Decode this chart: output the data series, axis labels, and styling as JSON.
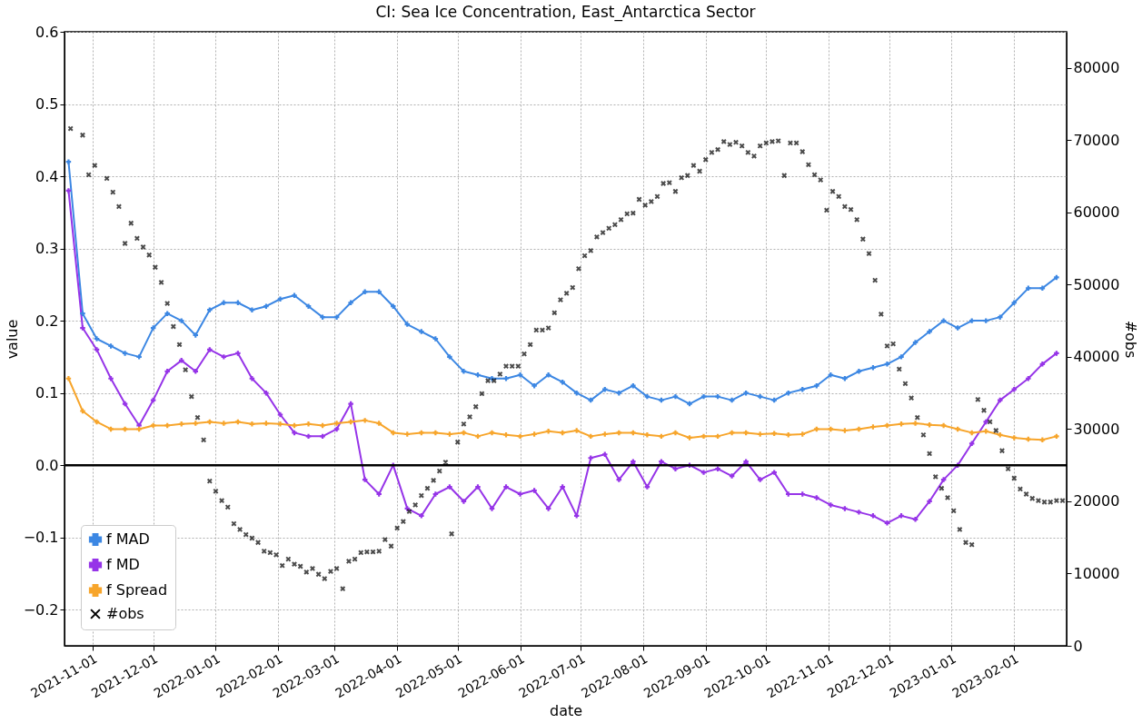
{
  "chart_data": {
    "type": "line",
    "title": "CI: Sea Ice Concentration, East_Antarctica Sector",
    "xlabel": "date",
    "ylabel": "value",
    "y2label": "#obs",
    "x": [
      "2021-10-20",
      "2021-10-27",
      "2021-11-03",
      "2021-11-10",
      "2021-11-17",
      "2021-11-24",
      "2021-12-01",
      "2021-12-08",
      "2021-12-15",
      "2021-12-22",
      "2021-12-29",
      "2022-01-05",
      "2022-01-12",
      "2022-01-19",
      "2022-01-26",
      "2022-02-02",
      "2022-02-09",
      "2022-02-16",
      "2022-02-23",
      "2022-03-02",
      "2022-03-09",
      "2022-03-16",
      "2022-03-23",
      "2022-03-30",
      "2022-04-06",
      "2022-04-13",
      "2022-04-20",
      "2022-04-27",
      "2022-05-04",
      "2022-05-11",
      "2022-05-18",
      "2022-05-25",
      "2022-06-01",
      "2022-06-08",
      "2022-06-15",
      "2022-06-22",
      "2022-06-29",
      "2022-07-06",
      "2022-07-13",
      "2022-07-20",
      "2022-07-27",
      "2022-08-03",
      "2022-08-10",
      "2022-08-17",
      "2022-08-24",
      "2022-08-31",
      "2022-09-07",
      "2022-09-14",
      "2022-09-21",
      "2022-09-28",
      "2022-10-05",
      "2022-10-12",
      "2022-10-19",
      "2022-10-26",
      "2022-11-02",
      "2022-11-09",
      "2022-11-16",
      "2022-11-23",
      "2022-11-30",
      "2022-12-07",
      "2022-12-14",
      "2022-12-21",
      "2022-12-28",
      "2023-01-04",
      "2023-01-11",
      "2023-01-18",
      "2023-01-25",
      "2023-02-01",
      "2023-02-08",
      "2023-02-15",
      "2023-02-22"
    ],
    "series": [
      {
        "name": "f MAD",
        "color": "#3c87e3",
        "values": [
          0.42,
          0.21,
          0.175,
          0.165,
          0.155,
          0.15,
          0.19,
          0.21,
          0.2,
          0.18,
          0.215,
          0.225,
          0.225,
          0.215,
          0.22,
          0.23,
          0.235,
          0.22,
          0.205,
          0.205,
          0.225,
          0.24,
          0.24,
          0.22,
          0.195,
          0.185,
          0.175,
          0.15,
          0.13,
          0.125,
          0.12,
          0.12,
          0.125,
          0.11,
          0.125,
          0.115,
          0.1,
          0.09,
          0.105,
          0.1,
          0.11,
          0.095,
          0.09,
          0.095,
          0.085,
          0.095,
          0.095,
          0.09,
          0.1,
          0.095,
          0.09,
          0.1,
          0.105,
          0.11,
          0.125,
          0.12,
          0.13,
          0.135,
          0.14,
          0.15,
          0.17,
          0.185,
          0.2,
          0.19,
          0.2,
          0.2,
          0.205,
          0.225,
          0.245,
          0.245,
          0.26
        ]
      },
      {
        "name": "f MD",
        "color": "#9634e8",
        "values": [
          0.38,
          0.19,
          0.16,
          0.12,
          0.085,
          0.055,
          0.09,
          0.13,
          0.145,
          0.13,
          0.16,
          0.15,
          0.155,
          0.12,
          0.1,
          0.07,
          0.045,
          0.04,
          0.04,
          0.05,
          0.085,
          -0.02,
          -0.04,
          0.0,
          -0.06,
          -0.07,
          -0.04,
          -0.03,
          -0.05,
          -0.03,
          -0.06,
          -0.03,
          -0.04,
          -0.035,
          -0.06,
          -0.03,
          -0.07,
          0.01,
          0.015,
          -0.02,
          0.005,
          -0.03,
          0.005,
          -0.005,
          0.0,
          -0.01,
          -0.005,
          -0.015,
          0.005,
          -0.02,
          -0.01,
          -0.04,
          -0.04,
          -0.045,
          -0.055,
          -0.06,
          -0.065,
          -0.07,
          -0.08,
          -0.07,
          -0.075,
          -0.05,
          -0.02,
          0.0,
          0.03,
          0.06,
          0.09,
          0.105,
          0.12,
          0.14,
          0.155
        ]
      },
      {
        "name": "f Spread",
        "color": "#f7a52b",
        "values": [
          0.12,
          0.075,
          0.06,
          0.05,
          0.05,
          0.05,
          0.055,
          0.055,
          0.057,
          0.058,
          0.06,
          0.058,
          0.06,
          0.057,
          0.058,
          0.057,
          0.055,
          0.057,
          0.055,
          0.058,
          0.06,
          0.062,
          0.058,
          0.045,
          0.043,
          0.045,
          0.045,
          0.043,
          0.045,
          0.04,
          0.045,
          0.042,
          0.04,
          0.043,
          0.047,
          0.045,
          0.048,
          0.04,
          0.043,
          0.045,
          0.045,
          0.042,
          0.04,
          0.045,
          0.038,
          0.04,
          0.04,
          0.045,
          0.045,
          0.043,
          0.044,
          0.042,
          0.043,
          0.05,
          0.05,
          0.048,
          0.05,
          0.053,
          0.055,
          0.057,
          0.058,
          0.056,
          0.055,
          0.05,
          0.045,
          0.047,
          0.042,
          0.038,
          0.036,
          0.035,
          0.04
        ]
      },
      {
        "name": "#obs",
        "type": "scatter",
        "axis": "y2",
        "color": "#000000",
        "x": [
          "2021-10-21",
          "2021-10-27",
          "2021-10-30",
          "2021-11-02",
          "2021-11-08",
          "2021-11-11",
          "2021-11-14",
          "2021-11-17",
          "2021-11-20",
          "2021-11-23",
          "2021-11-26",
          "2021-11-29",
          "2021-12-02",
          "2021-12-05",
          "2021-12-08",
          "2021-12-11",
          "2021-12-14",
          "2021-12-17",
          "2021-12-20",
          "2021-12-23",
          "2021-12-26",
          "2021-12-29",
          "2022-01-01",
          "2022-01-04",
          "2022-01-07",
          "2022-01-10",
          "2022-01-13",
          "2022-01-16",
          "2022-01-19",
          "2022-01-22",
          "2022-01-25",
          "2022-01-28",
          "2022-01-31",
          "2022-02-03",
          "2022-02-06",
          "2022-02-09",
          "2022-02-12",
          "2022-02-15",
          "2022-02-18",
          "2022-02-21",
          "2022-02-24",
          "2022-02-27",
          "2022-03-02",
          "2022-03-05",
          "2022-03-08",
          "2022-03-11",
          "2022-03-14",
          "2022-03-17",
          "2022-03-20",
          "2022-03-23",
          "2022-03-26",
          "2022-03-29",
          "2022-04-01",
          "2022-04-04",
          "2022-04-07",
          "2022-04-10",
          "2022-04-13",
          "2022-04-16",
          "2022-04-19",
          "2022-04-22",
          "2022-04-25",
          "2022-04-28",
          "2022-05-01",
          "2022-05-04",
          "2022-05-07",
          "2022-05-10",
          "2022-05-13",
          "2022-05-16",
          "2022-05-19",
          "2022-05-22",
          "2022-05-25",
          "2022-05-28",
          "2022-05-31",
          "2022-06-03",
          "2022-06-06",
          "2022-06-09",
          "2022-06-12",
          "2022-06-15",
          "2022-06-18",
          "2022-06-21",
          "2022-06-24",
          "2022-06-27",
          "2022-06-30",
          "2022-07-03",
          "2022-07-06",
          "2022-07-09",
          "2022-07-12",
          "2022-07-15",
          "2022-07-18",
          "2022-07-21",
          "2022-07-24",
          "2022-07-27",
          "2022-07-30",
          "2022-08-02",
          "2022-08-05",
          "2022-08-08",
          "2022-08-11",
          "2022-08-14",
          "2022-08-17",
          "2022-08-20",
          "2022-08-23",
          "2022-08-26",
          "2022-08-29",
          "2022-09-01",
          "2022-09-04",
          "2022-09-07",
          "2022-09-10",
          "2022-09-13",
          "2022-09-16",
          "2022-09-19",
          "2022-09-22",
          "2022-09-25",
          "2022-09-28",
          "2022-10-01",
          "2022-10-04",
          "2022-10-07",
          "2022-10-10",
          "2022-10-13",
          "2022-10-16",
          "2022-10-19",
          "2022-10-22",
          "2022-10-25",
          "2022-10-28",
          "2022-10-31",
          "2022-11-03",
          "2022-11-06",
          "2022-11-09",
          "2022-11-12",
          "2022-11-15",
          "2022-11-18",
          "2022-11-21",
          "2022-11-24",
          "2022-11-27",
          "2022-11-30",
          "2022-12-03",
          "2022-12-06",
          "2022-12-09",
          "2022-12-12",
          "2022-12-15",
          "2022-12-18",
          "2022-12-21",
          "2022-12-24",
          "2022-12-27",
          "2022-12-30",
          "2023-01-02",
          "2023-01-05",
          "2023-01-08",
          "2023-01-11",
          "2023-01-14",
          "2023-01-17",
          "2023-01-20",
          "2023-01-23",
          "2023-01-26",
          "2023-01-29",
          "2023-02-01",
          "2023-02-04",
          "2023-02-07",
          "2023-02-10",
          "2023-02-13",
          "2023-02-16",
          "2023-02-19",
          "2023-02-22",
          "2023-02-25"
        ],
        "values": [
          71600,
          70700,
          65200,
          66500,
          64700,
          62800,
          60800,
          55700,
          58500,
          56400,
          55200,
          54100,
          52400,
          50300,
          47400,
          44200,
          41700,
          38200,
          34500,
          31600,
          28500,
          22800,
          21400,
          20100,
          19200,
          16900,
          16100,
          15400,
          14900,
          14300,
          13100,
          12900,
          12600,
          11100,
          12000,
          11300,
          11000,
          10200,
          10700,
          9900,
          9300,
          10300,
          10700,
          7900,
          11700,
          12000,
          12900,
          13000,
          13000,
          13100,
          14700,
          13800,
          16300,
          17200,
          18600,
          19500,
          20800,
          21800,
          22900,
          24200,
          25400,
          15500,
          28200,
          30700,
          31700,
          33100,
          34900,
          36700,
          36700,
          37600,
          38700,
          38700,
          38700,
          40400,
          41700,
          43700,
          43700,
          44000,
          46100,
          47900,
          48800,
          49600,
          52200,
          54000,
          54700,
          56600,
          57200,
          57800,
          58300,
          59000,
          59800,
          59900,
          61800,
          61000,
          61500,
          62200,
          64000,
          64100,
          62900,
          64800,
          65100,
          66500,
          65700,
          67300,
          68300,
          68700,
          69800,
          69400,
          69700,
          69200,
          68300,
          67800,
          69200,
          69600,
          69800,
          69900,
          65100,
          69600,
          69600,
          68400,
          66600,
          65200,
          64500,
          60300,
          62900,
          62200,
          60800,
          60400,
          59000,
          56300,
          54300,
          50600,
          45900,
          41500,
          41800,
          38300,
          36300,
          34300,
          31600,
          29200,
          26600,
          23400,
          21800,
          20500,
          18700,
          16100,
          14300,
          14000,
          34100,
          32600,
          31000,
          29800,
          27000,
          24500,
          23200,
          21700,
          21000,
          20400,
          20100,
          19900,
          19900,
          20100,
          20100
        ]
      }
    ],
    "xlim": [
      "2021-10-18",
      "2023-02-27"
    ],
    "xticks": [
      "2021-11-01",
      "2021-12-01",
      "2022-01-01",
      "2022-02-01",
      "2022-03-01",
      "2022-04-01",
      "2022-05-01",
      "2022-06-01",
      "2022-07-01",
      "2022-08-01",
      "2022-09-01",
      "2022-10-01",
      "2022-11-01",
      "2022-12-01",
      "2023-01-01",
      "2023-02-01"
    ],
    "ylim": [
      -0.25,
      0.6
    ],
    "yticks": [
      {
        "value": -0.2,
        "label": "−0.2"
      },
      {
        "value": -0.1,
        "label": "−0.1"
      },
      {
        "value": 0,
        "label": "0.0"
      },
      0.1,
      0.2,
      0.3,
      0.4,
      0.5,
      0.6
    ],
    "y2lim": [
      0,
      85000
    ],
    "y2ticks": [
      0,
      10000,
      20000,
      30000,
      40000,
      50000,
      60000,
      70000,
      80000
    ],
    "ref_lines": [
      {
        "axis": "y",
        "value": 0,
        "color": "#000000"
      }
    ],
    "grid": true,
    "legend": "bottom left",
    "marker": "cross",
    "line_style": "solid"
  }
}
